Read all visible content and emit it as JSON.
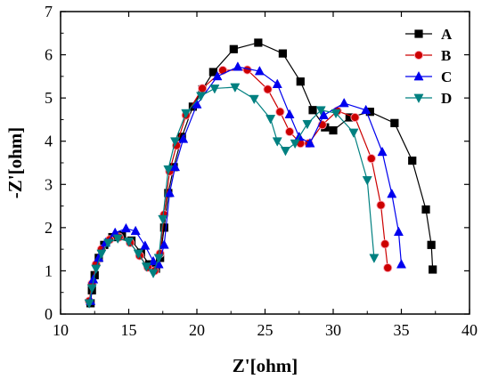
{
  "chart_data": {
    "type": "scatter",
    "xlabel": "Z'[ohm]",
    "ylabel": "-Z'[ohm]",
    "xlim": [
      10,
      40
    ],
    "ylim": [
      0,
      7
    ],
    "xticks": [
      10,
      15,
      20,
      25,
      30,
      35,
      40
    ],
    "yticks": [
      0,
      1,
      2,
      3,
      4,
      5,
      6,
      7
    ],
    "grid": false,
    "legend": "top-right",
    "series": [
      {
        "name": "A",
        "color": "#000000",
        "marker": "square",
        "points": [
          [
            12.2,
            0.25
          ],
          [
            12.3,
            0.55
          ],
          [
            12.5,
            0.9
          ],
          [
            12.8,
            1.3
          ],
          [
            13.2,
            1.6
          ],
          [
            13.8,
            1.78
          ],
          [
            14.5,
            1.82
          ],
          [
            15.2,
            1.7
          ],
          [
            15.9,
            1.42
          ],
          [
            16.5,
            1.15
          ],
          [
            17.0,
            1.05
          ],
          [
            17.3,
            1.3
          ],
          [
            17.6,
            2.0
          ],
          [
            17.9,
            2.8
          ],
          [
            18.3,
            3.4
          ],
          [
            18.9,
            4.1
          ],
          [
            19.7,
            4.8
          ],
          [
            20.4,
            5.2
          ],
          [
            21.2,
            5.6
          ],
          [
            22.7,
            6.13
          ],
          [
            24.5,
            6.28
          ],
          [
            26.3,
            6.03
          ],
          [
            27.6,
            5.38
          ],
          [
            28.5,
            4.72
          ],
          [
            29.4,
            4.32
          ],
          [
            30.0,
            4.25
          ],
          [
            31.2,
            4.55
          ],
          [
            32.7,
            4.68
          ],
          [
            34.5,
            4.42
          ],
          [
            35.8,
            3.55
          ],
          [
            36.8,
            2.42
          ],
          [
            37.2,
            1.6
          ],
          [
            37.3,
            1.03
          ]
        ]
      },
      {
        "name": "B",
        "color": "#cc0000",
        "marker": "circle",
        "points": [
          [
            12.1,
            0.3
          ],
          [
            12.3,
            0.7
          ],
          [
            12.6,
            1.15
          ],
          [
            13.0,
            1.5
          ],
          [
            13.6,
            1.72
          ],
          [
            14.3,
            1.78
          ],
          [
            15.1,
            1.65
          ],
          [
            15.8,
            1.35
          ],
          [
            16.4,
            1.08
          ],
          [
            16.9,
            1.0
          ],
          [
            17.3,
            1.4
          ],
          [
            17.6,
            2.3
          ],
          [
            18.0,
            3.3
          ],
          [
            18.5,
            3.9
          ],
          [
            19.2,
            4.6
          ],
          [
            20.4,
            5.22
          ],
          [
            21.9,
            5.64
          ],
          [
            23.7,
            5.65
          ],
          [
            25.2,
            5.2
          ],
          [
            26.1,
            4.68
          ],
          [
            26.8,
            4.22
          ],
          [
            27.6,
            3.95
          ],
          [
            28.2,
            3.95
          ],
          [
            29.2,
            4.38
          ],
          [
            30.3,
            4.7
          ],
          [
            31.6,
            4.55
          ],
          [
            32.8,
            3.6
          ],
          [
            33.5,
            2.52
          ],
          [
            33.8,
            1.62
          ],
          [
            34.0,
            1.07
          ]
        ]
      },
      {
        "name": "C",
        "color": "#0000ee",
        "marker": "triangle-up",
        "points": [
          [
            12.2,
            0.3
          ],
          [
            12.4,
            0.8
          ],
          [
            12.8,
            1.3
          ],
          [
            13.3,
            1.65
          ],
          [
            14.0,
            1.88
          ],
          [
            14.8,
            1.98
          ],
          [
            15.5,
            1.92
          ],
          [
            16.2,
            1.58
          ],
          [
            16.8,
            1.22
          ],
          [
            17.2,
            1.15
          ],
          [
            17.6,
            1.6
          ],
          [
            18.0,
            2.8
          ],
          [
            18.4,
            3.4
          ],
          [
            19.0,
            4.05
          ],
          [
            20.0,
            4.85
          ],
          [
            21.5,
            5.5
          ],
          [
            23.0,
            5.72
          ],
          [
            24.6,
            5.62
          ],
          [
            25.9,
            5.32
          ],
          [
            26.8,
            4.62
          ],
          [
            27.5,
            4.1
          ],
          [
            28.3,
            3.95
          ],
          [
            29.3,
            4.6
          ],
          [
            30.8,
            4.88
          ],
          [
            32.4,
            4.72
          ],
          [
            33.6,
            3.75
          ],
          [
            34.3,
            2.78
          ],
          [
            34.8,
            1.9
          ],
          [
            35.0,
            1.15
          ]
        ]
      },
      {
        "name": "D",
        "color": "#008080",
        "marker": "triangle-down",
        "points": [
          [
            12.1,
            0.25
          ],
          [
            12.3,
            0.6
          ],
          [
            12.6,
            1.05
          ],
          [
            13.0,
            1.4
          ],
          [
            13.5,
            1.65
          ],
          [
            14.2,
            1.75
          ],
          [
            15.0,
            1.68
          ],
          [
            15.7,
            1.4
          ],
          [
            16.3,
            1.1
          ],
          [
            16.8,
            0.95
          ],
          [
            17.2,
            1.3
          ],
          [
            17.5,
            2.2
          ],
          [
            17.9,
            3.35
          ],
          [
            18.4,
            4.0
          ],
          [
            19.2,
            4.65
          ],
          [
            20.3,
            5.05
          ],
          [
            21.3,
            5.22
          ],
          [
            22.8,
            5.25
          ],
          [
            24.2,
            4.98
          ],
          [
            25.4,
            4.52
          ],
          [
            25.9,
            4.0
          ],
          [
            26.5,
            3.78
          ],
          [
            27.2,
            3.95
          ],
          [
            28.1,
            4.4
          ],
          [
            29.1,
            4.72
          ],
          [
            30.2,
            4.65
          ],
          [
            31.5,
            4.2
          ],
          [
            32.5,
            3.1
          ],
          [
            33.0,
            1.3
          ]
        ]
      }
    ]
  }
}
